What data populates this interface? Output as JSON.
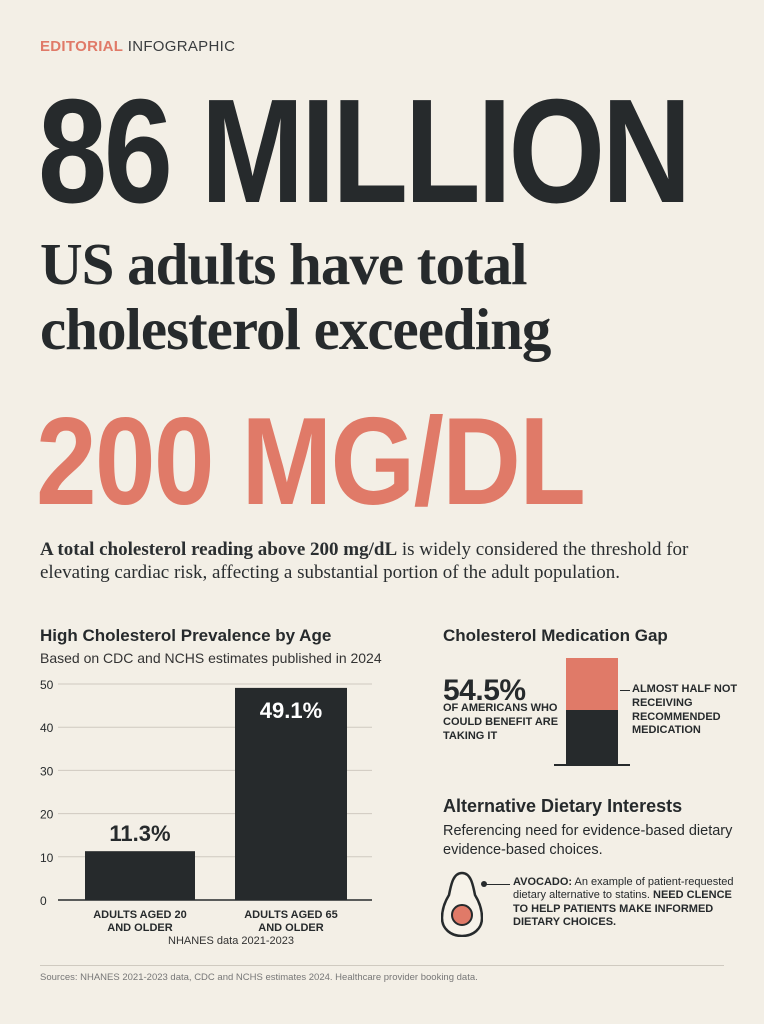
{
  "kicker": {
    "accent": "EDITORIAL",
    "rest": " INFOGRAPHIC"
  },
  "headline": {
    "big_number": "86 MILLION",
    "line1": "US adults have total",
    "line2": "cholesterol exceeding",
    "threshold": "200 MG/DL"
  },
  "intro": {
    "bold": "A total cholesterol reading above 200 mg/dL",
    "rest": " is widely considered the threshold for elevating cardiac risk, affecting a substantial portion of the adult population."
  },
  "chart_data": {
    "type": "bar",
    "title": "High Cholesterol Prevalence by Age",
    "subtitle": "Based on CDC and NCHS estimates published in 2024",
    "categories": [
      "ADULTS AGED 20\nAND OLDER",
      "ADULTS AGED 65\nAND OLDER"
    ],
    "values": [
      11.3,
      49.1
    ],
    "value_labels": [
      "11.3%",
      "49.1%"
    ],
    "ylim": [
      0,
      50
    ],
    "yticks": [
      0,
      10,
      20,
      30,
      40,
      50
    ],
    "grid": true,
    "bar_color": "#262a2c",
    "note": "NHANES data 2021-2023"
  },
  "medication_gap": {
    "title": "Cholesterol Medication Gap",
    "stat": "54.5%",
    "stat_label": "OF AMERICANS WHO COULD BENEFIT ARE TAKING IT",
    "callout": "ALMOST HALF NOT RECEIVING RECOMMENDED MEDICATION",
    "colors": {
      "not_receiving": "#e07a68",
      "taking": "#262a2c"
    }
  },
  "dietary": {
    "title": "Alternative Dietary Interests",
    "description": "Referencing need for evidence-based dietary evidence-based choices.",
    "icon": "avocado-icon",
    "avocado_label": "AVOCADO:",
    "avocado_text": " An example of patient-requested dietary alternative to statins. ",
    "avocado_bold": "NEED CLENCE TO HELP PATIENTS MAKE INFORMED DIETARY CHOICES."
  },
  "footer": "Sources: NHANES 2021-2023 data, CDC and NCHS estimates 2024. Healthcare provider booking data.",
  "colors": {
    "accent": "#e07a68",
    "dark": "#262a2c",
    "background": "#f3efe6"
  }
}
